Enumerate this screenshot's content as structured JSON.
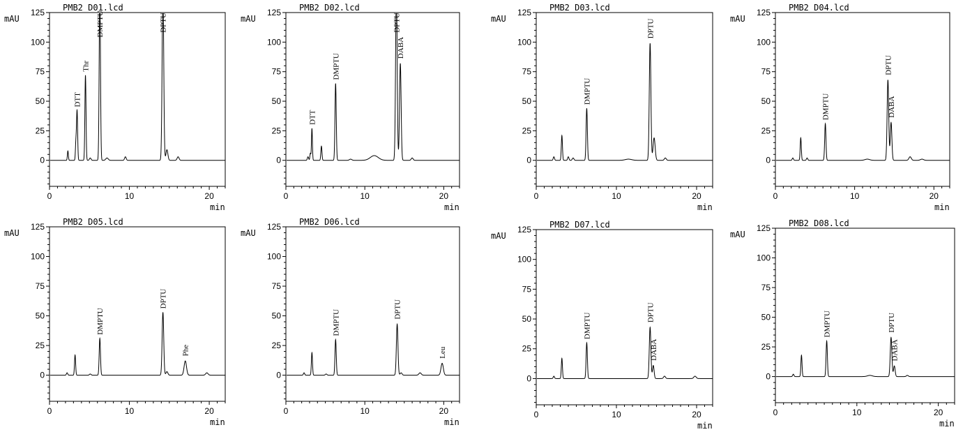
{
  "chart_data": [
    {
      "type": "line",
      "title": "PMB2_D01.lcd",
      "ylabel": "mAU",
      "xlabel": "min",
      "xlim": [
        0,
        22
      ],
      "ylim": [
        -22,
        125
      ],
      "x_ticks": [
        0,
        10,
        20
      ],
      "y_ticks": [
        0,
        25,
        50,
        75,
        100,
        125
      ],
      "peaks": [
        {
          "x": 2.3,
          "h": 8,
          "w": 0.06
        },
        {
          "x": 3.3,
          "h": 14,
          "w": 0.06
        },
        {
          "x": 3.45,
          "h": 42,
          "w": 0.07
        },
        {
          "x": 4.5,
          "h": 72,
          "w": 0.07
        },
        {
          "x": 5.1,
          "h": 2,
          "w": 0.1
        },
        {
          "x": 6.3,
          "h": 145,
          "w": 0.08
        },
        {
          "x": 7.2,
          "h": 2,
          "w": 0.15
        },
        {
          "x": 9.5,
          "h": 3,
          "w": 0.1
        },
        {
          "x": 14.2,
          "h": 145,
          "w": 0.1
        },
        {
          "x": 14.7,
          "h": 9,
          "w": 0.12
        },
        {
          "x": 16.1,
          "h": 3,
          "w": 0.12
        }
      ],
      "labels": [
        {
          "text": "DTT",
          "x": 3.45,
          "y": 45
        },
        {
          "text": "Thr",
          "x": 4.5,
          "y": 75
        },
        {
          "text": "DMPTU",
          "x": 6.3,
          "y": 104
        },
        {
          "text": "DPTU",
          "x": 14.2,
          "y": 108
        }
      ]
    },
    {
      "type": "line",
      "title": "PMB2_D02.lcd",
      "ylabel": "mAU",
      "xlabel": "min",
      "xlim": [
        0,
        22
      ],
      "ylim": [
        -22,
        125
      ],
      "x_ticks": [
        0,
        10,
        20
      ],
      "y_ticks": [
        0,
        25,
        50,
        75,
        100,
        125
      ],
      "peaks": [
        {
          "x": 2.8,
          "h": 3,
          "w": 0.08
        },
        {
          "x": 3.1,
          "h": 6,
          "w": 0.06
        },
        {
          "x": 3.3,
          "h": 27,
          "w": 0.06
        },
        {
          "x": 4.5,
          "h": 12,
          "w": 0.07
        },
        {
          "x": 6.3,
          "h": 65,
          "w": 0.08
        },
        {
          "x": 8.2,
          "h": 1,
          "w": 0.15
        },
        {
          "x": 11.2,
          "h": 4,
          "w": 0.5
        },
        {
          "x": 14.0,
          "h": 145,
          "w": 0.1
        },
        {
          "x": 14.5,
          "h": 82,
          "w": 0.1
        },
        {
          "x": 16.0,
          "h": 2,
          "w": 0.12
        }
      ],
      "labels": [
        {
          "text": "DTT",
          "x": 3.3,
          "y": 30
        },
        {
          "text": "DMPTU",
          "x": 6.3,
          "y": 68
        },
        {
          "text": "DPTU",
          "x": 14.0,
          "y": 108
        },
        {
          "text": "DABA",
          "x": 14.5,
          "y": 86
        }
      ]
    },
    {
      "type": "line",
      "title": "PMB2_D03.lcd",
      "ylabel": "mAU",
      "xlabel": "min",
      "xlim": [
        0,
        22
      ],
      "ylim": [
        -22,
        125
      ],
      "x_ticks": [
        0,
        10,
        20
      ],
      "y_ticks": [
        0,
        25,
        50,
        75,
        100,
        125
      ],
      "peaks": [
        {
          "x": 2.2,
          "h": 3,
          "w": 0.08
        },
        {
          "x": 3.2,
          "h": 21,
          "w": 0.07
        },
        {
          "x": 4.0,
          "h": 3,
          "w": 0.08
        },
        {
          "x": 4.6,
          "h": 2,
          "w": 0.1
        },
        {
          "x": 6.3,
          "h": 44,
          "w": 0.08
        },
        {
          "x": 11.5,
          "h": 1,
          "w": 0.4
        },
        {
          "x": 14.2,
          "h": 99,
          "w": 0.1
        },
        {
          "x": 14.7,
          "h": 19,
          "w": 0.13
        },
        {
          "x": 16.1,
          "h": 2,
          "w": 0.12
        }
      ],
      "labels": [
        {
          "text": "DMPTU",
          "x": 6.3,
          "y": 47
        },
        {
          "text": "DPTU",
          "x": 14.2,
          "y": 103
        }
      ]
    },
    {
      "type": "line",
      "title": "PMB2_D04.lcd",
      "ylabel": "mAU",
      "xlabel": "min",
      "xlim": [
        0,
        22
      ],
      "ylim": [
        -22,
        125
      ],
      "x_ticks": [
        0,
        10,
        20
      ],
      "y_ticks": [
        0,
        25,
        50,
        75,
        100,
        125
      ],
      "peaks": [
        {
          "x": 2.2,
          "h": 2,
          "w": 0.08
        },
        {
          "x": 3.2,
          "h": 19,
          "w": 0.07
        },
        {
          "x": 4.0,
          "h": 2,
          "w": 0.08
        },
        {
          "x": 6.3,
          "h": 31,
          "w": 0.08
        },
        {
          "x": 11.6,
          "h": 1,
          "w": 0.3
        },
        {
          "x": 14.2,
          "h": 68,
          "w": 0.1
        },
        {
          "x": 14.6,
          "h": 32,
          "w": 0.1
        },
        {
          "x": 17.0,
          "h": 3,
          "w": 0.15
        },
        {
          "x": 18.5,
          "h": 1,
          "w": 0.2
        }
      ],
      "labels": [
        {
          "text": "DMPTU",
          "x": 6.3,
          "y": 34
        },
        {
          "text": "DPTU",
          "x": 14.2,
          "y": 72
        },
        {
          "text": "DABA",
          "x": 14.6,
          "y": 36
        }
      ]
    },
    {
      "type": "line",
      "title": "PMB2_D05.lcd",
      "ylabel": "mAU",
      "xlabel": "min",
      "xlim": [
        0,
        22
      ],
      "ylim": [
        -22,
        125
      ],
      "x_ticks": [
        0,
        10,
        20
      ],
      "y_ticks": [
        0,
        25,
        50,
        75,
        100,
        125
      ],
      "peaks": [
        {
          "x": 2.2,
          "h": 2,
          "w": 0.08
        },
        {
          "x": 3.2,
          "h": 17,
          "w": 0.07
        },
        {
          "x": 5.1,
          "h": 1,
          "w": 0.1
        },
        {
          "x": 6.3,
          "h": 31,
          "w": 0.08
        },
        {
          "x": 14.2,
          "h": 53,
          "w": 0.1
        },
        {
          "x": 14.7,
          "h": 3,
          "w": 0.12
        },
        {
          "x": 17.0,
          "h": 12,
          "w": 0.15
        },
        {
          "x": 19.7,
          "h": 2,
          "w": 0.15
        }
      ],
      "labels": [
        {
          "text": "DMPTU",
          "x": 6.3,
          "y": 34
        },
        {
          "text": "DPTU",
          "x": 14.2,
          "y": 56
        },
        {
          "text": "Phe",
          "x": 17.0,
          "y": 16
        }
      ]
    },
    {
      "type": "line",
      "title": "PMB2_D06.lcd",
      "ylabel": "mAU",
      "xlabel": "min",
      "xlim": [
        0,
        22
      ],
      "ylim": [
        -22,
        125
      ],
      "x_ticks": [
        0,
        10,
        20
      ],
      "y_ticks": [
        0,
        25,
        50,
        75,
        100,
        125
      ],
      "peaks": [
        {
          "x": 2.3,
          "h": 2,
          "w": 0.08
        },
        {
          "x": 3.3,
          "h": 19,
          "w": 0.07
        },
        {
          "x": 5.1,
          "h": 1,
          "w": 0.1
        },
        {
          "x": 6.3,
          "h": 30,
          "w": 0.08
        },
        {
          "x": 14.1,
          "h": 43,
          "w": 0.1
        },
        {
          "x": 14.6,
          "h": 2,
          "w": 0.12
        },
        {
          "x": 17.0,
          "h": 2,
          "w": 0.15
        },
        {
          "x": 19.8,
          "h": 10,
          "w": 0.15
        }
      ],
      "labels": [
        {
          "text": "DMPTU",
          "x": 6.3,
          "y": 33
        },
        {
          "text": "DPTU",
          "x": 14.1,
          "y": 47
        },
        {
          "text": "Leu",
          "x": 19.8,
          "y": 14
        }
      ]
    },
    {
      "type": "line",
      "title": "PMB2_D07.lcd",
      "ylabel": "mAU",
      "xlabel": "min",
      "xlim": [
        0,
        22
      ],
      "ylim": [
        -22,
        125
      ],
      "x_ticks": [
        0,
        10,
        20
      ],
      "y_ticks": [
        0,
        25,
        50,
        75,
        100,
        125
      ],
      "peaks": [
        {
          "x": 2.2,
          "h": 2,
          "w": 0.08
        },
        {
          "x": 3.2,
          "h": 17,
          "w": 0.07
        },
        {
          "x": 6.3,
          "h": 30,
          "w": 0.08
        },
        {
          "x": 14.2,
          "h": 43,
          "w": 0.1
        },
        {
          "x": 14.6,
          "h": 11,
          "w": 0.1
        },
        {
          "x": 16.0,
          "h": 2,
          "w": 0.12
        },
        {
          "x": 19.8,
          "h": 2,
          "w": 0.15
        }
      ],
      "labels": [
        {
          "text": "DMPTU",
          "x": 6.3,
          "y": 33
        },
        {
          "text": "DPTU",
          "x": 14.2,
          "y": 47
        },
        {
          "text": "DABA",
          "x": 14.6,
          "y": 15
        }
      ]
    },
    {
      "type": "line",
      "title": "PMB2_D08.lcd",
      "ylabel": "mAU",
      "xlabel": "min",
      "xlim": [
        0,
        22
      ],
      "ylim": [
        -22,
        125
      ],
      "x_ticks": [
        0,
        10,
        20
      ],
      "y_ticks": [
        0,
        25,
        50,
        75,
        100,
        125
      ],
      "peaks": [
        {
          "x": 2.2,
          "h": 2,
          "w": 0.08
        },
        {
          "x": 3.2,
          "h": 18,
          "w": 0.07
        },
        {
          "x": 6.3,
          "h": 30,
          "w": 0.08
        },
        {
          "x": 11.6,
          "h": 1,
          "w": 0.3
        },
        {
          "x": 14.2,
          "h": 33,
          "w": 0.1
        },
        {
          "x": 14.6,
          "h": 9,
          "w": 0.1
        },
        {
          "x": 16.2,
          "h": 1,
          "w": 0.12
        }
      ],
      "labels": [
        {
          "text": "DMPTU",
          "x": 6.3,
          "y": 33
        },
        {
          "text": "DPTU",
          "x": 14.2,
          "y": 37
        },
        {
          "text": "DABA",
          "x": 14.6,
          "y": 13
        }
      ]
    }
  ]
}
